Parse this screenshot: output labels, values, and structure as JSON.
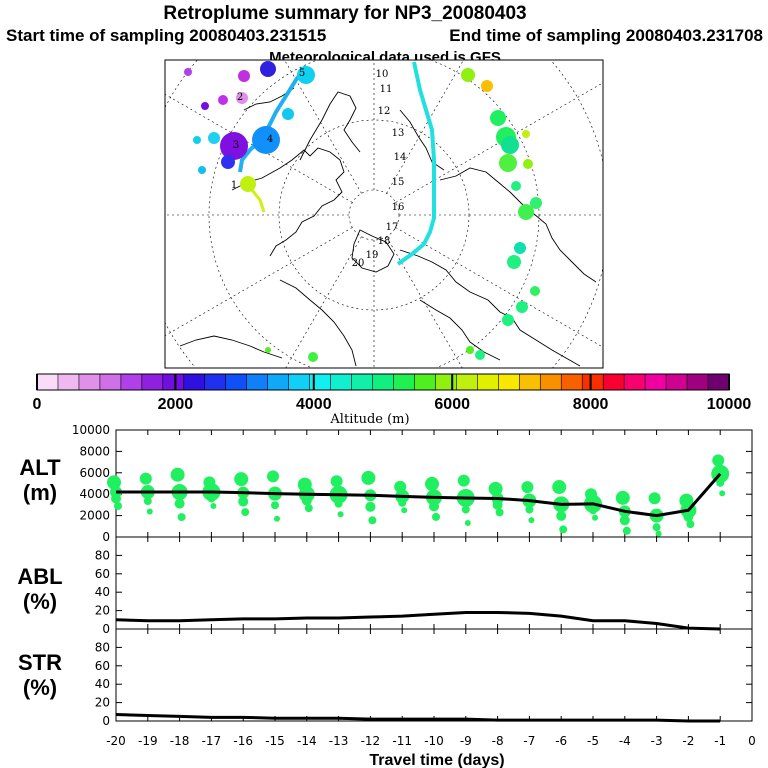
{
  "header": {
    "title": "Retroplume summary for NP3_20080403",
    "start": "Start time of sampling 20080403.231515",
    "end": "End time of sampling 20080403.231708",
    "met": "Meteorological data used is GFS"
  },
  "colorbar": {
    "ticks": [
      "0",
      "2000",
      "4000",
      "6000",
      "8000",
      "10000"
    ],
    "label": "Altitude (m)",
    "colors": [
      "#f8dcf8",
      "#f0b8f0",
      "#e090e8",
      "#d070e8",
      "#b040e8",
      "#9020e0",
      "#7010e0",
      "#3010e0",
      "#2030f0",
      "#1050f8",
      "#1080f8",
      "#10a8f8",
      "#10d0f8",
      "#10f0f0",
      "#10f0d0",
      "#10f0a8",
      "#10f080",
      "#20f050",
      "#50f020",
      "#90f010",
      "#c0f010",
      "#e0f000",
      "#f8e800",
      "#f8c000",
      "#f89000",
      "#f86000",
      "#f83000",
      "#f80030",
      "#f80070",
      "#f000a0",
      "#d00090",
      "#a00080",
      "#700070"
    ]
  },
  "map": {
    "number_labels": [
      "10",
      "11",
      "12",
      "13",
      "14",
      "15",
      "16",
      "17",
      "18",
      "19",
      "20",
      "5",
      "4",
      "3",
      "2",
      "1"
    ]
  },
  "chart_data": [
    {
      "type": "line",
      "panel": "ALT",
      "ylabel": "ALT (m)",
      "yticks": [
        "0",
        "2000",
        "4000",
        "6000",
        "8000",
        "10000"
      ],
      "ylim": [
        0,
        10000
      ],
      "x": [
        -20,
        -19,
        -18,
        -17,
        -16,
        -15,
        -14,
        -13,
        -12,
        -11,
        -10,
        -9,
        -8,
        -7,
        -6,
        -5,
        -4,
        -3,
        -2,
        -1
      ],
      "values": [
        4200,
        4200,
        4200,
        4200,
        4150,
        4050,
        4000,
        3950,
        3900,
        3800,
        3700,
        3650,
        3600,
        3400,
        3050,
        3100,
        2400,
        2000,
        2500,
        5900
      ],
      "scatter_color": "#20f060"
    },
    {
      "type": "line",
      "panel": "ABL",
      "ylabel": "ABL (%)",
      "yticks": [
        "0",
        "20",
        "40",
        "60",
        "80"
      ],
      "ylim": [
        0,
        100
      ],
      "x": [
        -20,
        -19,
        -18,
        -17,
        -16,
        -15,
        -14,
        -13,
        -12,
        -11,
        -10,
        -9,
        -8,
        -7,
        -6,
        -5,
        -4,
        -3,
        -2,
        -1
      ],
      "values": [
        10,
        9,
        9,
        10,
        11,
        11,
        12,
        12,
        13,
        14,
        16,
        18,
        18,
        17,
        14,
        9,
        9,
        6,
        1,
        0
      ]
    },
    {
      "type": "line",
      "panel": "STR",
      "ylabel": "STR (%)",
      "yticks": [
        "0",
        "20",
        "40",
        "60",
        "80"
      ],
      "ylim": [
        0,
        100
      ],
      "x": [
        -20,
        -19,
        -18,
        -17,
        -16,
        -15,
        -14,
        -13,
        -12,
        -11,
        -10,
        -9,
        -8,
        -7,
        -6,
        -5,
        -4,
        -3,
        -2,
        -1
      ],
      "values": [
        7,
        6,
        5,
        4,
        4,
        3,
        3,
        3,
        2,
        2,
        2,
        2,
        1,
        1,
        1,
        1,
        1,
        1,
        0,
        0
      ]
    }
  ],
  "xaxis": {
    "ticks": [
      "-20",
      "-19",
      "-18",
      "-17",
      "-16",
      "-15",
      "-14",
      "-13",
      "-12",
      "-11",
      "-10",
      "-9",
      "-8",
      "-7",
      "-6",
      "-5",
      "-4",
      "-3",
      "-2",
      "-1",
      "0"
    ],
    "label": "Travel time (days)"
  }
}
